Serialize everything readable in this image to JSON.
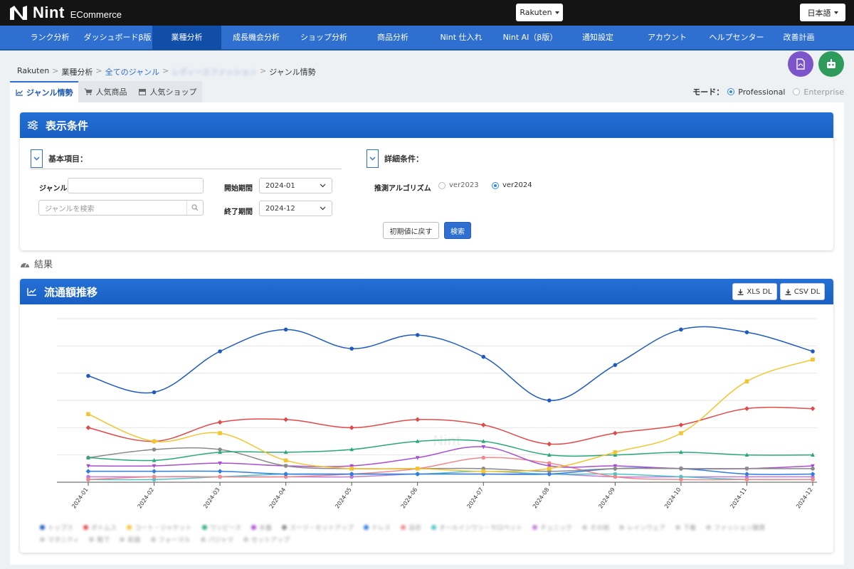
{
  "brand": {
    "name": "Nint",
    "sub": "ECommerce"
  },
  "market_select": {
    "value": "Rakuten"
  },
  "lang_select": {
    "value": "日本語"
  },
  "nav": [
    {
      "label": "ランク分析"
    },
    {
      "label": "ダッシュボードβ版"
    },
    {
      "label": "業種分析",
      "active": true
    },
    {
      "label": "成長機会分析"
    },
    {
      "label": "ショップ分析"
    },
    {
      "label": "商品分析"
    },
    {
      "label": "Nint 仕入れ"
    },
    {
      "label": "Nint AI（β版）"
    },
    {
      "label": "通知設定"
    },
    {
      "label": "アカウント"
    },
    {
      "label": "ヘルプセンター"
    },
    {
      "label": "改善計画"
    }
  ],
  "breadcrumb": {
    "root": "Rakuten",
    "level1": "業種分析",
    "level2": "全てのジャンル",
    "level3": "レディースファッション",
    "current": "ジャンル情勢"
  },
  "tabs": [
    {
      "label": "ジャンル情勢",
      "icon": "line-chart-icon",
      "active": true
    },
    {
      "label": "人気商品",
      "icon": "cart-icon"
    },
    {
      "label": "人気ショップ",
      "icon": "shop-icon"
    }
  ],
  "mode": {
    "label": "モード：",
    "options": [
      "Professional",
      "Enterprise"
    ],
    "selected": "Professional"
  },
  "conditions": {
    "title": "表示条件",
    "basic_title": "基本項目：",
    "detail_title": "詳細条件：",
    "genre_label": "ジャンル",
    "genre_value": "",
    "genre_search_placeholder": "ジャンルを検索",
    "start_label": "開始期間",
    "start_value": "2024-01",
    "end_label": "終了期間",
    "end_value": "2024-12",
    "algo_label": "推測アルゴリズム",
    "algo_options": [
      "ver2023",
      "ver2024"
    ],
    "algo_selected": "ver2024",
    "reset_label": "初期値に戻す",
    "search_label": "検索"
  },
  "results": {
    "label": "結果"
  },
  "chart_panel": {
    "title": "流通額推移",
    "xls_label": "XLS DL",
    "csv_label": "CSV DL"
  },
  "chart_data": {
    "type": "line",
    "x": [
      "2024-01",
      "2024-02",
      "2024-03",
      "2024-04",
      "2024-05",
      "2024-06",
      "2024-07",
      "2024-08",
      "2024-09",
      "2024-10",
      "2024-11",
      "2024-12"
    ],
    "ylim": [
      0,
      60
    ],
    "grid": true,
    "series": [
      {
        "color": "#1f5bbf",
        "marker": "circle",
        "values": [
          39,
          33,
          48,
          56,
          49,
          54,
          46,
          30,
          43,
          56,
          55,
          48
        ]
      },
      {
        "color": "#f2c531",
        "marker": "square",
        "values": [
          25,
          15,
          18,
          8,
          5,
          5,
          4,
          5,
          11,
          18,
          37,
          45
        ]
      },
      {
        "color": "#e24a4a",
        "marker": "diamond",
        "values": [
          20,
          15,
          22,
          23,
          20,
          23,
          21,
          14,
          18,
          21,
          27,
          27
        ]
      },
      {
        "color": "#2aa87a",
        "marker": "triangle",
        "values": [
          9,
          8,
          11,
          11,
          12,
          15,
          15,
          10,
          10,
          11,
          10,
          10
        ]
      },
      {
        "color": "#8a8a8a",
        "marker": "circle",
        "values": [
          9,
          12,
          12,
          6,
          5,
          5,
          5,
          4,
          5,
          5,
          5,
          5
        ]
      },
      {
        "color": "#a84fcf",
        "marker": "triangle-down",
        "values": [
          6,
          6,
          7,
          6,
          6,
          9,
          13,
          6,
          6,
          5,
          5,
          6
        ]
      },
      {
        "color": "#2f7de0",
        "marker": "diamond",
        "values": [
          4,
          4,
          4,
          3,
          3,
          3,
          3,
          3,
          5,
          5,
          3,
          3
        ]
      },
      {
        "color": "#f08a8a",
        "marker": "circle",
        "values": [
          1,
          2,
          2,
          2,
          3,
          5,
          9,
          7,
          2,
          1,
          1,
          1
        ]
      },
      {
        "color": "#4fc3c8",
        "marker": "circle",
        "values": [
          1,
          1,
          2,
          3,
          3,
          3,
          4,
          3,
          3,
          2,
          1,
          1
        ]
      },
      {
        "color": "#c07ad8",
        "marker": "circle",
        "values": [
          2,
          2,
          2,
          2,
          2,
          3,
          3,
          3,
          2,
          2,
          2,
          2
        ]
      }
    ]
  },
  "legend": [
    {
      "label": "トップス",
      "color": "#1f5bbf"
    },
    {
      "label": "ボトムス",
      "color": "#e24a4a"
    },
    {
      "label": "コート・ジャケット",
      "color": "#f2c531"
    },
    {
      "label": "ワンピース",
      "color": "#2aa87a"
    },
    {
      "label": "水着",
      "color": "#a84fcf"
    },
    {
      "label": "スーツ・セットアップ",
      "color": "#8a8a8a"
    },
    {
      "label": "ドレス",
      "color": "#2f7de0"
    },
    {
      "label": "浴衣",
      "color": "#f08a8a"
    },
    {
      "label": "オールインワン・サロペット",
      "color": "#4fc3c8"
    },
    {
      "label": "チュニック",
      "color": "#c07ad8"
    },
    {
      "label": "その他",
      "color": "#cccccc"
    },
    {
      "label": "レインウェア",
      "color": "#cccccc"
    },
    {
      "label": "下着",
      "color": "#cccccc"
    },
    {
      "label": "ファッション雑貨",
      "color": "#cccccc"
    },
    {
      "label": "マタニティ",
      "color": "#cccccc"
    },
    {
      "label": "靴下",
      "color": "#cccccc"
    },
    {
      "label": "和装",
      "color": "#cccccc"
    },
    {
      "label": "フォーマル",
      "color": "#cccccc"
    },
    {
      "label": "パジャマ",
      "color": "#cccccc"
    },
    {
      "label": "セットアップ",
      "color": "#cccccc"
    }
  ],
  "colors": {
    "brand_blue": "#2e6fcf",
    "nav_active": "#114ea8",
    "topbar": "#141414"
  }
}
